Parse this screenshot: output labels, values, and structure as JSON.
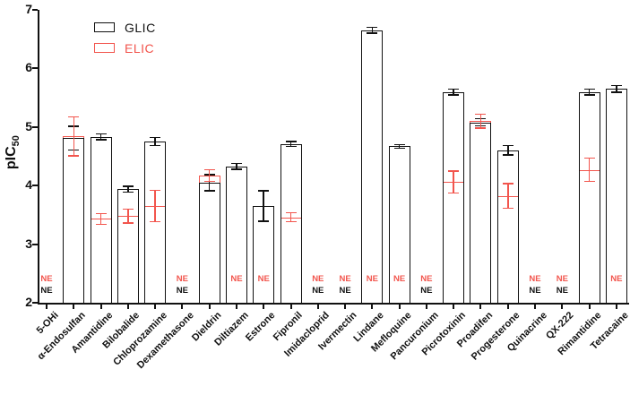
{
  "chart_data": {
    "type": "bar",
    "title": "",
    "ylabel_main": "pIC",
    "ylabel_sub": "50",
    "xlabel": "",
    "ylim": [
      2,
      7
    ],
    "yticks": [
      2,
      3,
      4,
      5,
      6,
      7
    ],
    "grid": false,
    "legend_position": "top-left-inside",
    "no_effect_label": "NE",
    "bar_style": "open-outline",
    "categories": [
      "5-OHi",
      "α-Endosulfan",
      "Amantidine",
      "Bilobalide",
      "Chloprozamine",
      "Dexamethasone",
      "Dieldrin",
      "Diltiazem",
      "Estrone",
      "Fipronil",
      "Imidacloprid",
      "Ivermectin",
      "Lindane",
      "Mefloquine",
      "Pancuronium",
      "Picrotoxinin",
      "Proadifen",
      "Progesterone",
      "Quinacrine",
      "QX-222",
      "Rimantidine",
      "Tetracaine"
    ],
    "series": [
      {
        "name": "GLIC",
        "color": "#111111",
        "values": [
          null,
          4.81,
          4.83,
          3.94,
          4.75,
          null,
          4.05,
          4.33,
          3.65,
          4.71,
          null,
          null,
          6.65,
          4.67,
          null,
          5.6,
          5.08,
          4.6,
          null,
          null,
          5.6,
          5.65
        ],
        "errors": [
          null,
          0.2,
          0.05,
          0.05,
          0.07,
          null,
          0.14,
          0.05,
          0.26,
          0.04,
          null,
          null,
          0.05,
          0.03,
          null,
          0.05,
          0.06,
          0.08,
          null,
          null,
          0.05,
          0.06
        ]
      },
      {
        "name": "ELIC",
        "color": "#F2554D",
        "values": [
          null,
          4.84,
          3.43,
          3.48,
          3.65,
          null,
          4.17,
          null,
          null,
          3.46,
          null,
          null,
          null,
          null,
          null,
          4.06,
          5.1,
          3.82,
          null,
          null,
          4.27,
          null
        ],
        "errors": [
          null,
          0.33,
          0.09,
          0.12,
          0.27,
          null,
          0.1,
          null,
          null,
          0.08,
          null,
          null,
          null,
          null,
          null,
          0.19,
          0.12,
          0.21,
          null,
          null,
          0.2,
          null
        ]
      }
    ],
    "no_effect_rows": {
      "ELIC_y": 2.42,
      "GLIC_y": 2.22
    }
  }
}
